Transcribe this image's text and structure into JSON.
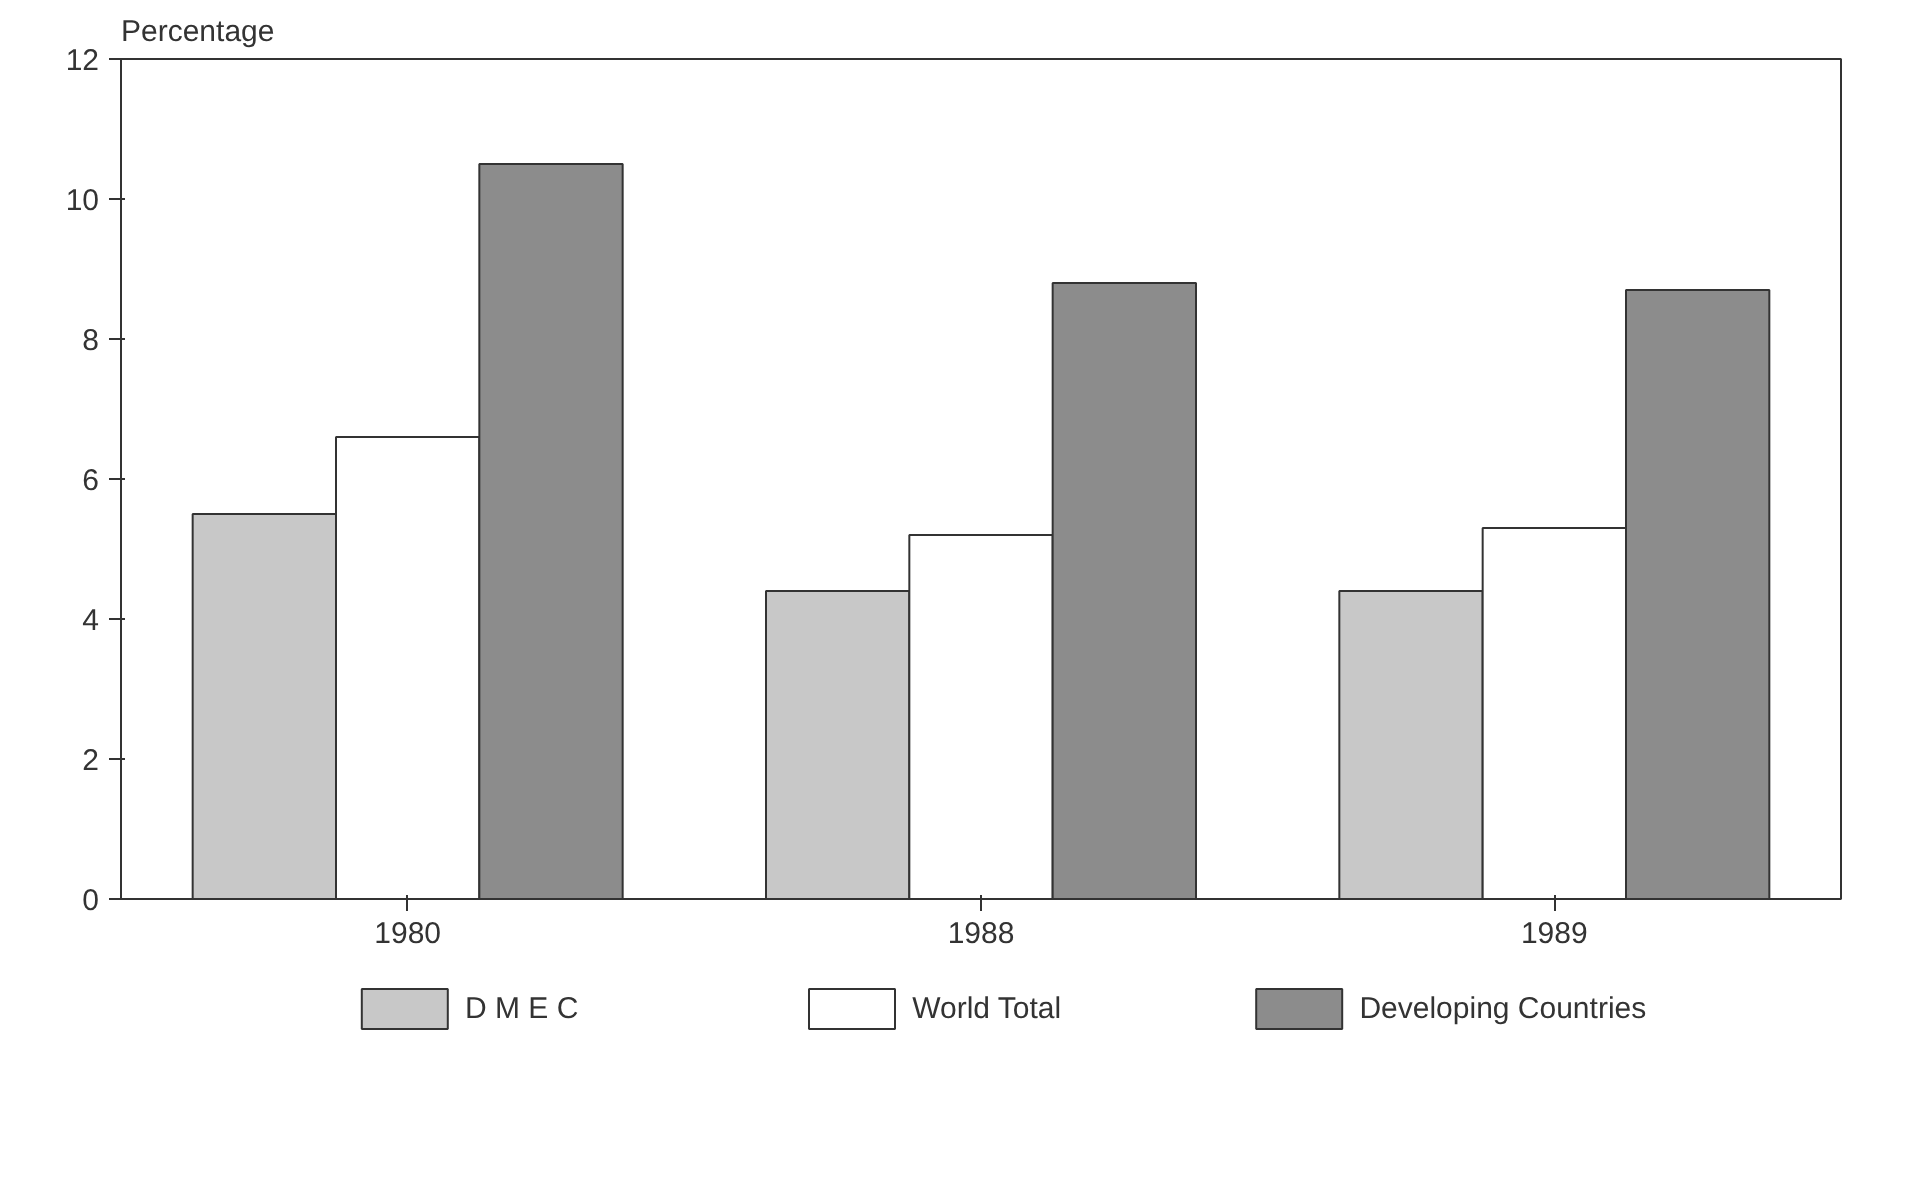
{
  "chart_data": {
    "type": "bar",
    "ylabel": "Percentage",
    "categories": [
      "1980",
      "1988",
      "1989"
    ],
    "series": [
      {
        "name": "D M E C",
        "color": "#c8c8c8",
        "values": [
          5.5,
          4.4,
          4.4
        ]
      },
      {
        "name": "World Total",
        "color": "#ffffff",
        "values": [
          6.6,
          5.2,
          5.3
        ]
      },
      {
        "name": "Developing Countries",
        "color": "#8c8c8c",
        "values": [
          10.5,
          8.8,
          8.7
        ]
      }
    ],
    "ylim": [
      0,
      12
    ],
    "yticks": [
      0,
      2,
      4,
      6,
      8,
      10,
      12
    ],
    "grid": false,
    "legend": "bottom"
  }
}
